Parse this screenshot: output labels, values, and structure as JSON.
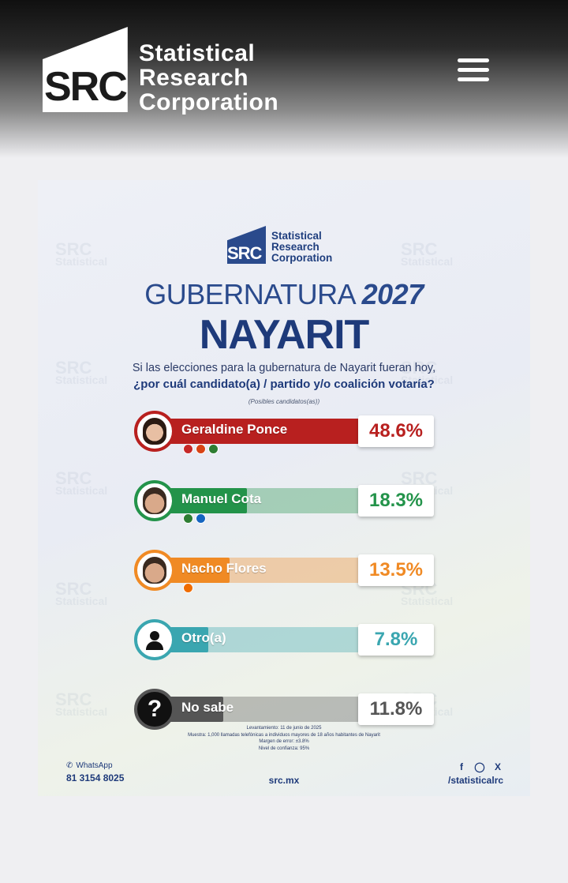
{
  "header": {
    "logo_letters": "SRC",
    "logo_line1": "Statistical",
    "logo_line2": "Research",
    "logo_line3": "Corporation",
    "menu_icon": "hamburger-menu-icon"
  },
  "infographic": {
    "brand_letters": "SRC",
    "brand_line1": "Statistical",
    "brand_line2": "Research",
    "brand_line3": "Corporation",
    "title_word": "GUBERNATURA",
    "title_year": "2027",
    "state": "NAYARIT",
    "question_line1": "Si las elecciones para la gubernatura de Nayarit fueran hoy,",
    "question_line2": "¿por cuál candidato(a) / partido y/o coalición votaría?",
    "question_note": "(Posibles candidatos(as))",
    "candidates": [
      {
        "name": "Geraldine Ponce",
        "percent_label": "48.6%",
        "percent": 48.6,
        "color": "#b8201f",
        "avatar": "woman-portrait-icon",
        "party_logos": [
          "#c62828",
          "#d84315",
          "#2e7d32"
        ]
      },
      {
        "name": "Manuel Cota",
        "percent_label": "18.3%",
        "percent": 18.3,
        "color": "#23934a",
        "avatar": "man-portrait-icon",
        "party_logos": [
          "#2e7d32",
          "#1565c0"
        ]
      },
      {
        "name": "Nacho Flores",
        "percent_label": "13.5%",
        "percent": 13.5,
        "color": "#f08a24",
        "avatar": "man-portrait-icon",
        "party_logos": [
          "#ef6c00"
        ]
      },
      {
        "name": "Otro(a)",
        "percent_label": "7.8%",
        "percent": 7.8,
        "color": "#3aa6b0",
        "avatar": "person-silhouette-icon",
        "party_logos": []
      },
      {
        "name": "No sabe",
        "percent_label": "11.8%",
        "percent": 11.8,
        "color": "#555555",
        "avatar": "question-mark-icon",
        "party_logos": []
      }
    ],
    "footnote_line1": "Levantamiento: 11 de junio de 2025",
    "footnote_line2": "Muestra: 1,000 llamadas telefónicas a individuos mayores de 18 años habitantes de Nayarit",
    "footnote_line3": "Margen de error: ±3.8%",
    "footnote_line4": "Nivel de confianza: 95%",
    "whatsapp_label": "WhatsApp",
    "phone": "81 3154 8025",
    "website": "src.mx",
    "social_handle": "/statisticalrc",
    "social_icons": [
      "facebook-icon",
      "instagram-icon",
      "x-icon"
    ]
  }
}
